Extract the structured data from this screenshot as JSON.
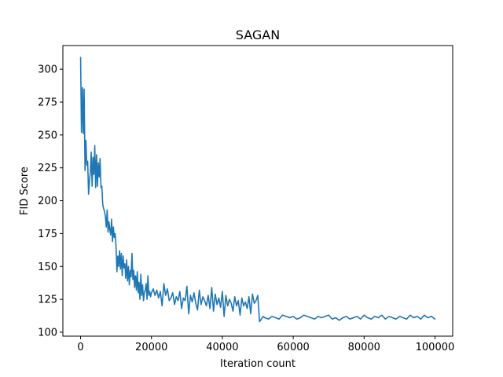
{
  "chart_data": {
    "type": "line",
    "title": "SAGAN",
    "xlabel": "Iteration count",
    "ylabel": "FID Score",
    "xlim": [
      -5000,
      105000
    ],
    "ylim": [
      97,
      318
    ],
    "xticks": [
      0,
      20000,
      40000,
      60000,
      80000,
      100000
    ],
    "xtick_labels": [
      "0",
      "20000",
      "40000",
      "60000",
      "80000",
      "100000"
    ],
    "yticks": [
      100,
      125,
      150,
      175,
      200,
      225,
      250,
      275,
      300
    ],
    "ytick_labels": [
      "100",
      "125",
      "150",
      "175",
      "200",
      "225",
      "250",
      "275",
      "300"
    ],
    "grid": false,
    "legend": "none",
    "series": [
      {
        "color": "#1f77b4",
        "x": [
          0,
          250,
          500,
          750,
          1000,
          1250,
          1500,
          1750,
          2000,
          2250,
          2500,
          2750,
          3000,
          3250,
          3500,
          3750,
          4000,
          4250,
          4500,
          4750,
          5000,
          5250,
          5500,
          5750,
          6000,
          6250,
          6500,
          6750,
          7000,
          7250,
          7500,
          7750,
          8000,
          8250,
          8500,
          8750,
          9000,
          9250,
          9500,
          9750,
          10000,
          10250,
          10500,
          10750,
          11000,
          11250,
          11500,
          11750,
          12000,
          12250,
          12500,
          12750,
          13000,
          13250,
          13500,
          13750,
          14000,
          14250,
          14500,
          14750,
          15000,
          15250,
          15500,
          15750,
          16000,
          16250,
          16500,
          16750,
          17000,
          17250,
          17500,
          17750,
          18000,
          18250,
          18500,
          18750,
          19000,
          19250,
          19500,
          19750,
          20000,
          20500,
          21000,
          21500,
          22000,
          22500,
          23000,
          23500,
          24000,
          24500,
          25000,
          25500,
          26000,
          26500,
          27000,
          27500,
          28000,
          28500,
          29000,
          29500,
          30000,
          30500,
          31000,
          31500,
          32000,
          32500,
          33000,
          33500,
          34000,
          34500,
          35000,
          35500,
          36000,
          36500,
          37000,
          37500,
          38000,
          38500,
          39000,
          39500,
          40000,
          40500,
          41000,
          41500,
          42000,
          42500,
          43000,
          43500,
          44000,
          44500,
          45000,
          45500,
          46000,
          46500,
          47000,
          47500,
          48000,
          48500,
          49000,
          49500,
          50000,
          50500,
          51000,
          51500,
          52000,
          53000,
          54000,
          55000,
          56000,
          57000,
          58000,
          59000,
          60000,
          61000,
          62000,
          63000,
          64000,
          65000,
          66000,
          67000,
          68000,
          69000,
          70000,
          71000,
          72000,
          73000,
          74000,
          75000,
          76000,
          77000,
          78000,
          79000,
          80000,
          81000,
          82000,
          83000,
          84000,
          85000,
          86000,
          87000,
          88000,
          89000,
          90000,
          91000,
          92000,
          93000,
          94000,
          95000,
          96000,
          97000,
          98000,
          99000,
          99500,
          100000
        ],
        "y": [
          309,
          252,
          286,
          251,
          285,
          223,
          246,
          227,
          230,
          205,
          215,
          222,
          237,
          211,
          233,
          220,
          242,
          210,
          235,
          211,
          229,
          218,
          232,
          210,
          211,
          197,
          194,
          192,
          188,
          180,
          193,
          176,
          184,
          178,
          174,
          186,
          169,
          180,
          172,
          175,
          165,
          146,
          158,
          150,
          162,
          148,
          160,
          143,
          158,
          149,
          152,
          141,
          155,
          139,
          150,
          136,
          147,
          142,
          160,
          140,
          147,
          134,
          143,
          132,
          146,
          130,
          138,
          125,
          144,
          128,
          136,
          124,
          130,
          132,
          137,
          125,
          143,
          128,
          131,
          127,
          130,
          133,
          128,
          132,
          126,
          131,
          120,
          137,
          128,
          133,
          124,
          126,
          130,
          121,
          127,
          124,
          131,
          118,
          126,
          124,
          135,
          114,
          128,
          123,
          130,
          122,
          117,
          132,
          121,
          127,
          124,
          120,
          128,
          118,
          134,
          116,
          129,
          121,
          126,
          119,
          131,
          112,
          128,
          120,
          125,
          122,
          116,
          127,
          120,
          124,
          113,
          126,
          120,
          123,
          118,
          127,
          114,
          129,
          122,
          124,
          128,
          108,
          110,
          112,
          111,
          110,
          112,
          111,
          110,
          113,
          112,
          111,
          112,
          110,
          111,
          113,
          112,
          111,
          110,
          112,
          111,
          112,
          113,
          110,
          111,
          109,
          111,
          112,
          110,
          111,
          112,
          110,
          113,
          111,
          110,
          112,
          111,
          113,
          110,
          112,
          111,
          110,
          112,
          111,
          110,
          113,
          111,
          112,
          110,
          113,
          111,
          112,
          111,
          110
        ]
      }
    ]
  }
}
